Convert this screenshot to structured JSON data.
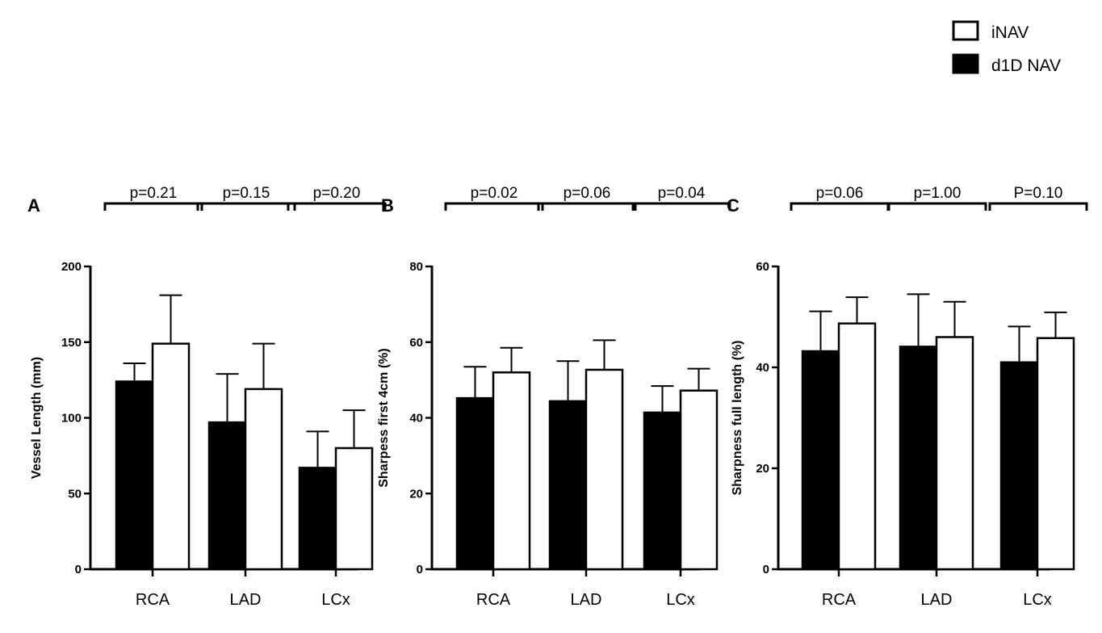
{
  "legend": {
    "items": [
      {
        "label": "iNAV",
        "fill": "#ffffff"
      },
      {
        "label": "d1D NAV",
        "fill": "#000000"
      }
    ]
  },
  "colors": {
    "d1D NAV": "#000000",
    "iNAV": "#ffffff",
    "stroke": "#000000"
  },
  "chart_data": [
    {
      "type": "bar",
      "panel": "A",
      "ylabel": "Vessel Length (mm)",
      "ylim": [
        0,
        200
      ],
      "yticks": [
        0,
        50,
        100,
        150,
        200
      ],
      "categories": [
        "RCA",
        "LAD",
        "LCx"
      ],
      "series": [
        {
          "name": "d1D NAV",
          "values": [
            124,
            97,
            67
          ],
          "errors": [
            12,
            32,
            24
          ]
        },
        {
          "name": "iNAV",
          "values": [
            149,
            119,
            80
          ],
          "errors": [
            32,
            30,
            25
          ]
        }
      ],
      "pvalues": [
        "p=0.21",
        "p=0.15",
        "p=0.20"
      ]
    },
    {
      "type": "bar",
      "panel": "B",
      "ylabel": "Sharpess first 4cm (%)",
      "ylim": [
        0,
        80
      ],
      "yticks": [
        0,
        20,
        40,
        60,
        80
      ],
      "categories": [
        "RCA",
        "LAD",
        "LCx"
      ],
      "series": [
        {
          "name": "d1D NAV",
          "values": [
            45.2,
            44.4,
            41.4
          ],
          "errors": [
            8.3,
            10.6,
            7.0
          ]
        },
        {
          "name": "iNAV",
          "values": [
            52.0,
            52.7,
            47.2
          ],
          "errors": [
            6.5,
            7.8,
            5.8
          ]
        }
      ],
      "pvalues": [
        "p=0.02",
        "p=0.06",
        "p=0.04"
      ]
    },
    {
      "type": "bar",
      "panel": "C",
      "ylabel": "Sharpness full length (%)",
      "ylim": [
        0,
        60
      ],
      "yticks": [
        0,
        20,
        40,
        60
      ],
      "categories": [
        "RCA",
        "LAD",
        "LCx"
      ],
      "series": [
        {
          "name": "d1D NAV",
          "values": [
            43.2,
            44.1,
            41.0
          ],
          "errors": [
            7.9,
            10.4,
            7.1
          ]
        },
        {
          "name": "iNAV",
          "values": [
            48.7,
            46.0,
            45.8
          ],
          "errors": [
            5.2,
            7.0,
            5.1
          ]
        }
      ],
      "pvalues": [
        "p=0.06",
        "p=1.00",
        "P=0.10"
      ]
    }
  ]
}
